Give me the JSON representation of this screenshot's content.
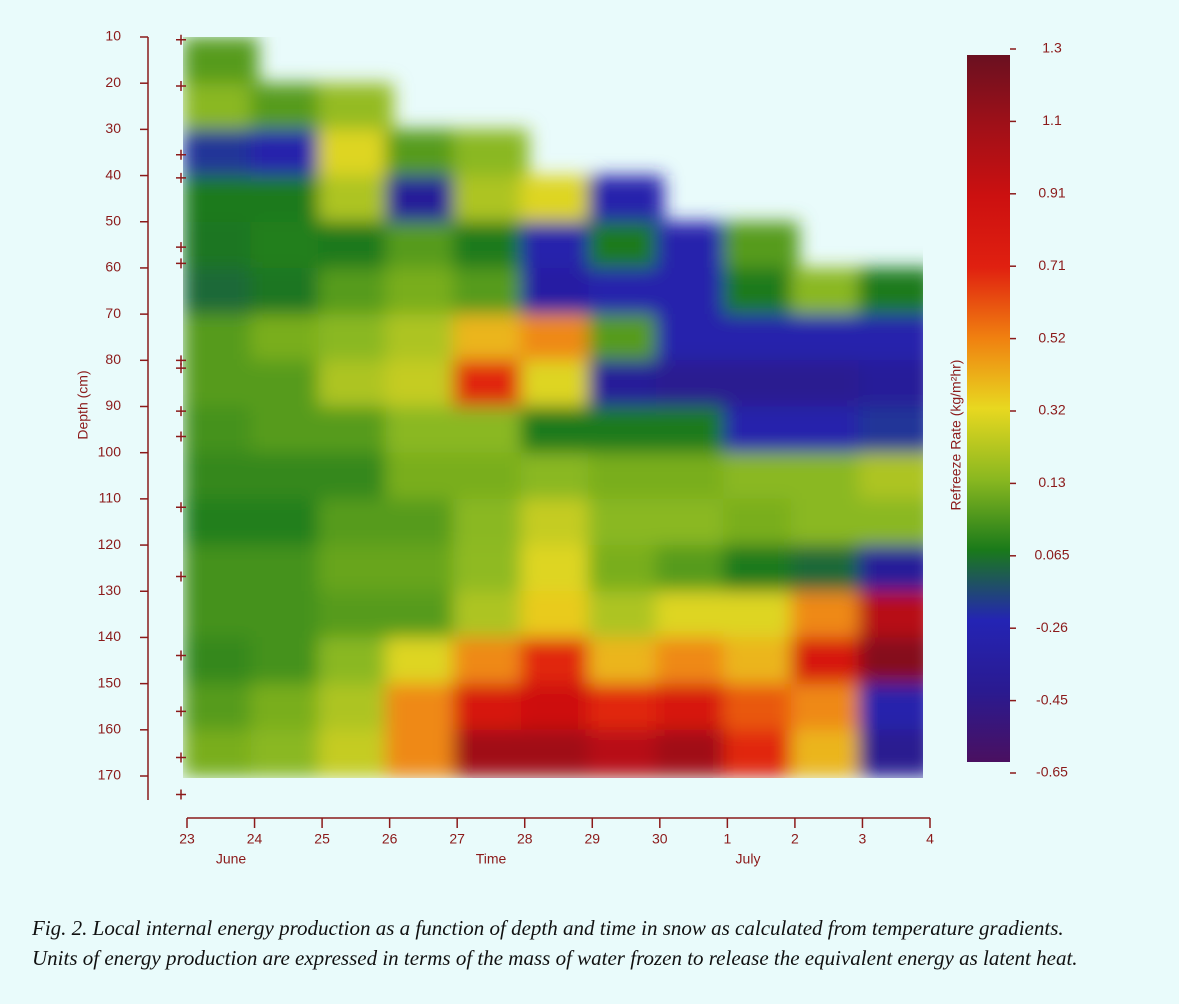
{
  "chart_data": {
    "type": "heatmap",
    "x_label": "Time",
    "y_label": "Depth (cm)",
    "months": [
      "June",
      "Time",
      "July"
    ],
    "colorbar_label": "Refreeze Rate (kg/m²hr)",
    "caption": [
      "Fig. 2. Local internal energy production as a function of depth and time in snow as calculated from temperature gradients.",
      "Units of energy production are expressed in terms of the mass of water frozen to release the equivalent energy as latent heat."
    ],
    "xlim": [
      23,
      34
    ],
    "xticks": [
      23,
      24,
      25,
      26,
      27,
      28,
      29,
      30,
      {
        "value": 31,
        "label": "1"
      },
      {
        "value": 32,
        "label": "2"
      },
      {
        "value": 33,
        "label": "3"
      },
      {
        "value": 34,
        "label": "4"
      }
    ],
    "ylim": [
      10,
      170
    ],
    "yticks": [
      10,
      20,
      30,
      40,
      50,
      60,
      70,
      80,
      90,
      100,
      110,
      120,
      130,
      140,
      150,
      160,
      170
    ],
    "sensor_depths": [
      10.6,
      20.6,
      35.5,
      40.5,
      55.5,
      59,
      80,
      81.7,
      91,
      96.5,
      111.8,
      126.8,
      143.9,
      156,
      166,
      174
    ],
    "x": [
      23.5,
      24.5,
      25.5,
      26.5,
      27.5,
      28.5,
      29.5,
      30.5,
      31.5,
      32.5,
      33.5
    ],
    "y": [
      15,
      25,
      35,
      45,
      55,
      65,
      75,
      85,
      95,
      105,
      115,
      125,
      135,
      145,
      155,
      165
    ],
    "z": [
      [
        0.1,
        null,
        null,
        null,
        null,
        null,
        null,
        null,
        null,
        null,
        null
      ],
      [
        0.13,
        0.1,
        0.15,
        null,
        null,
        null,
        null,
        null,
        null,
        null,
        null
      ],
      [
        -0.2,
        -0.3,
        0.3,
        0.1,
        0.13,
        null,
        null,
        null,
        null,
        null,
        null
      ],
      [
        0.065,
        0.065,
        0.2,
        -0.4,
        0.2,
        0.3,
        -0.3,
        null,
        null,
        null,
        null
      ],
      [
        0.05,
        0.07,
        0.06,
        0.1,
        0.065,
        -0.3,
        0.065,
        -0.3,
        0.1,
        null,
        null
      ],
      [
        0.0,
        0.05,
        0.1,
        0.12,
        0.1,
        -0.35,
        -0.3,
        -0.3,
        0.065,
        0.13,
        0.065
      ],
      [
        0.1,
        0.12,
        0.13,
        0.2,
        0.4,
        0.5,
        0.1,
        -0.3,
        -0.3,
        -0.3,
        -0.3
      ],
      [
        0.1,
        0.1,
        0.2,
        0.25,
        0.7,
        0.3,
        -0.4,
        -0.45,
        -0.45,
        -0.45,
        -0.4
      ],
      [
        0.09,
        0.1,
        0.1,
        0.13,
        0.13,
        0.065,
        0.065,
        0.065,
        -0.3,
        -0.3,
        -0.2
      ],
      [
        0.08,
        0.08,
        0.08,
        0.12,
        0.12,
        0.13,
        0.12,
        0.12,
        0.13,
        0.13,
        0.2
      ],
      [
        0.07,
        0.07,
        0.1,
        0.1,
        0.13,
        0.25,
        0.13,
        0.13,
        0.12,
        0.13,
        0.13
      ],
      [
        0.09,
        0.09,
        0.11,
        0.11,
        0.14,
        0.3,
        0.12,
        0.1,
        0.065,
        0.0,
        -0.4
      ],
      [
        0.09,
        0.09,
        0.1,
        0.1,
        0.2,
        0.35,
        0.2,
        0.3,
        0.3,
        0.5,
        1.0
      ],
      [
        0.08,
        0.09,
        0.13,
        0.3,
        0.5,
        0.7,
        0.4,
        0.5,
        0.4,
        0.8,
        1.2
      ],
      [
        0.1,
        0.12,
        0.2,
        0.5,
        0.8,
        0.9,
        0.7,
        0.8,
        0.6,
        0.5,
        -0.3
      ],
      [
        0.12,
        0.13,
        0.25,
        0.5,
        1.1,
        1.1,
        1.0,
        1.1,
        0.7,
        0.4,
        -0.45
      ]
    ],
    "colorbar": {
      "ticks": [
        -0.65,
        -0.45,
        -0.26,
        0.065,
        0.13,
        0.32,
        0.52,
        0.71,
        0.91,
        1.1,
        1.3
      ],
      "colors": [
        "#4a1060",
        "#2a1a90",
        "#2424b4",
        "#1a7a1a",
        "#8ab820",
        "#e8d820",
        "#f08010",
        "#e02010",
        "#cc1010",
        "#a01018",
        "#6a1020"
      ]
    }
  }
}
